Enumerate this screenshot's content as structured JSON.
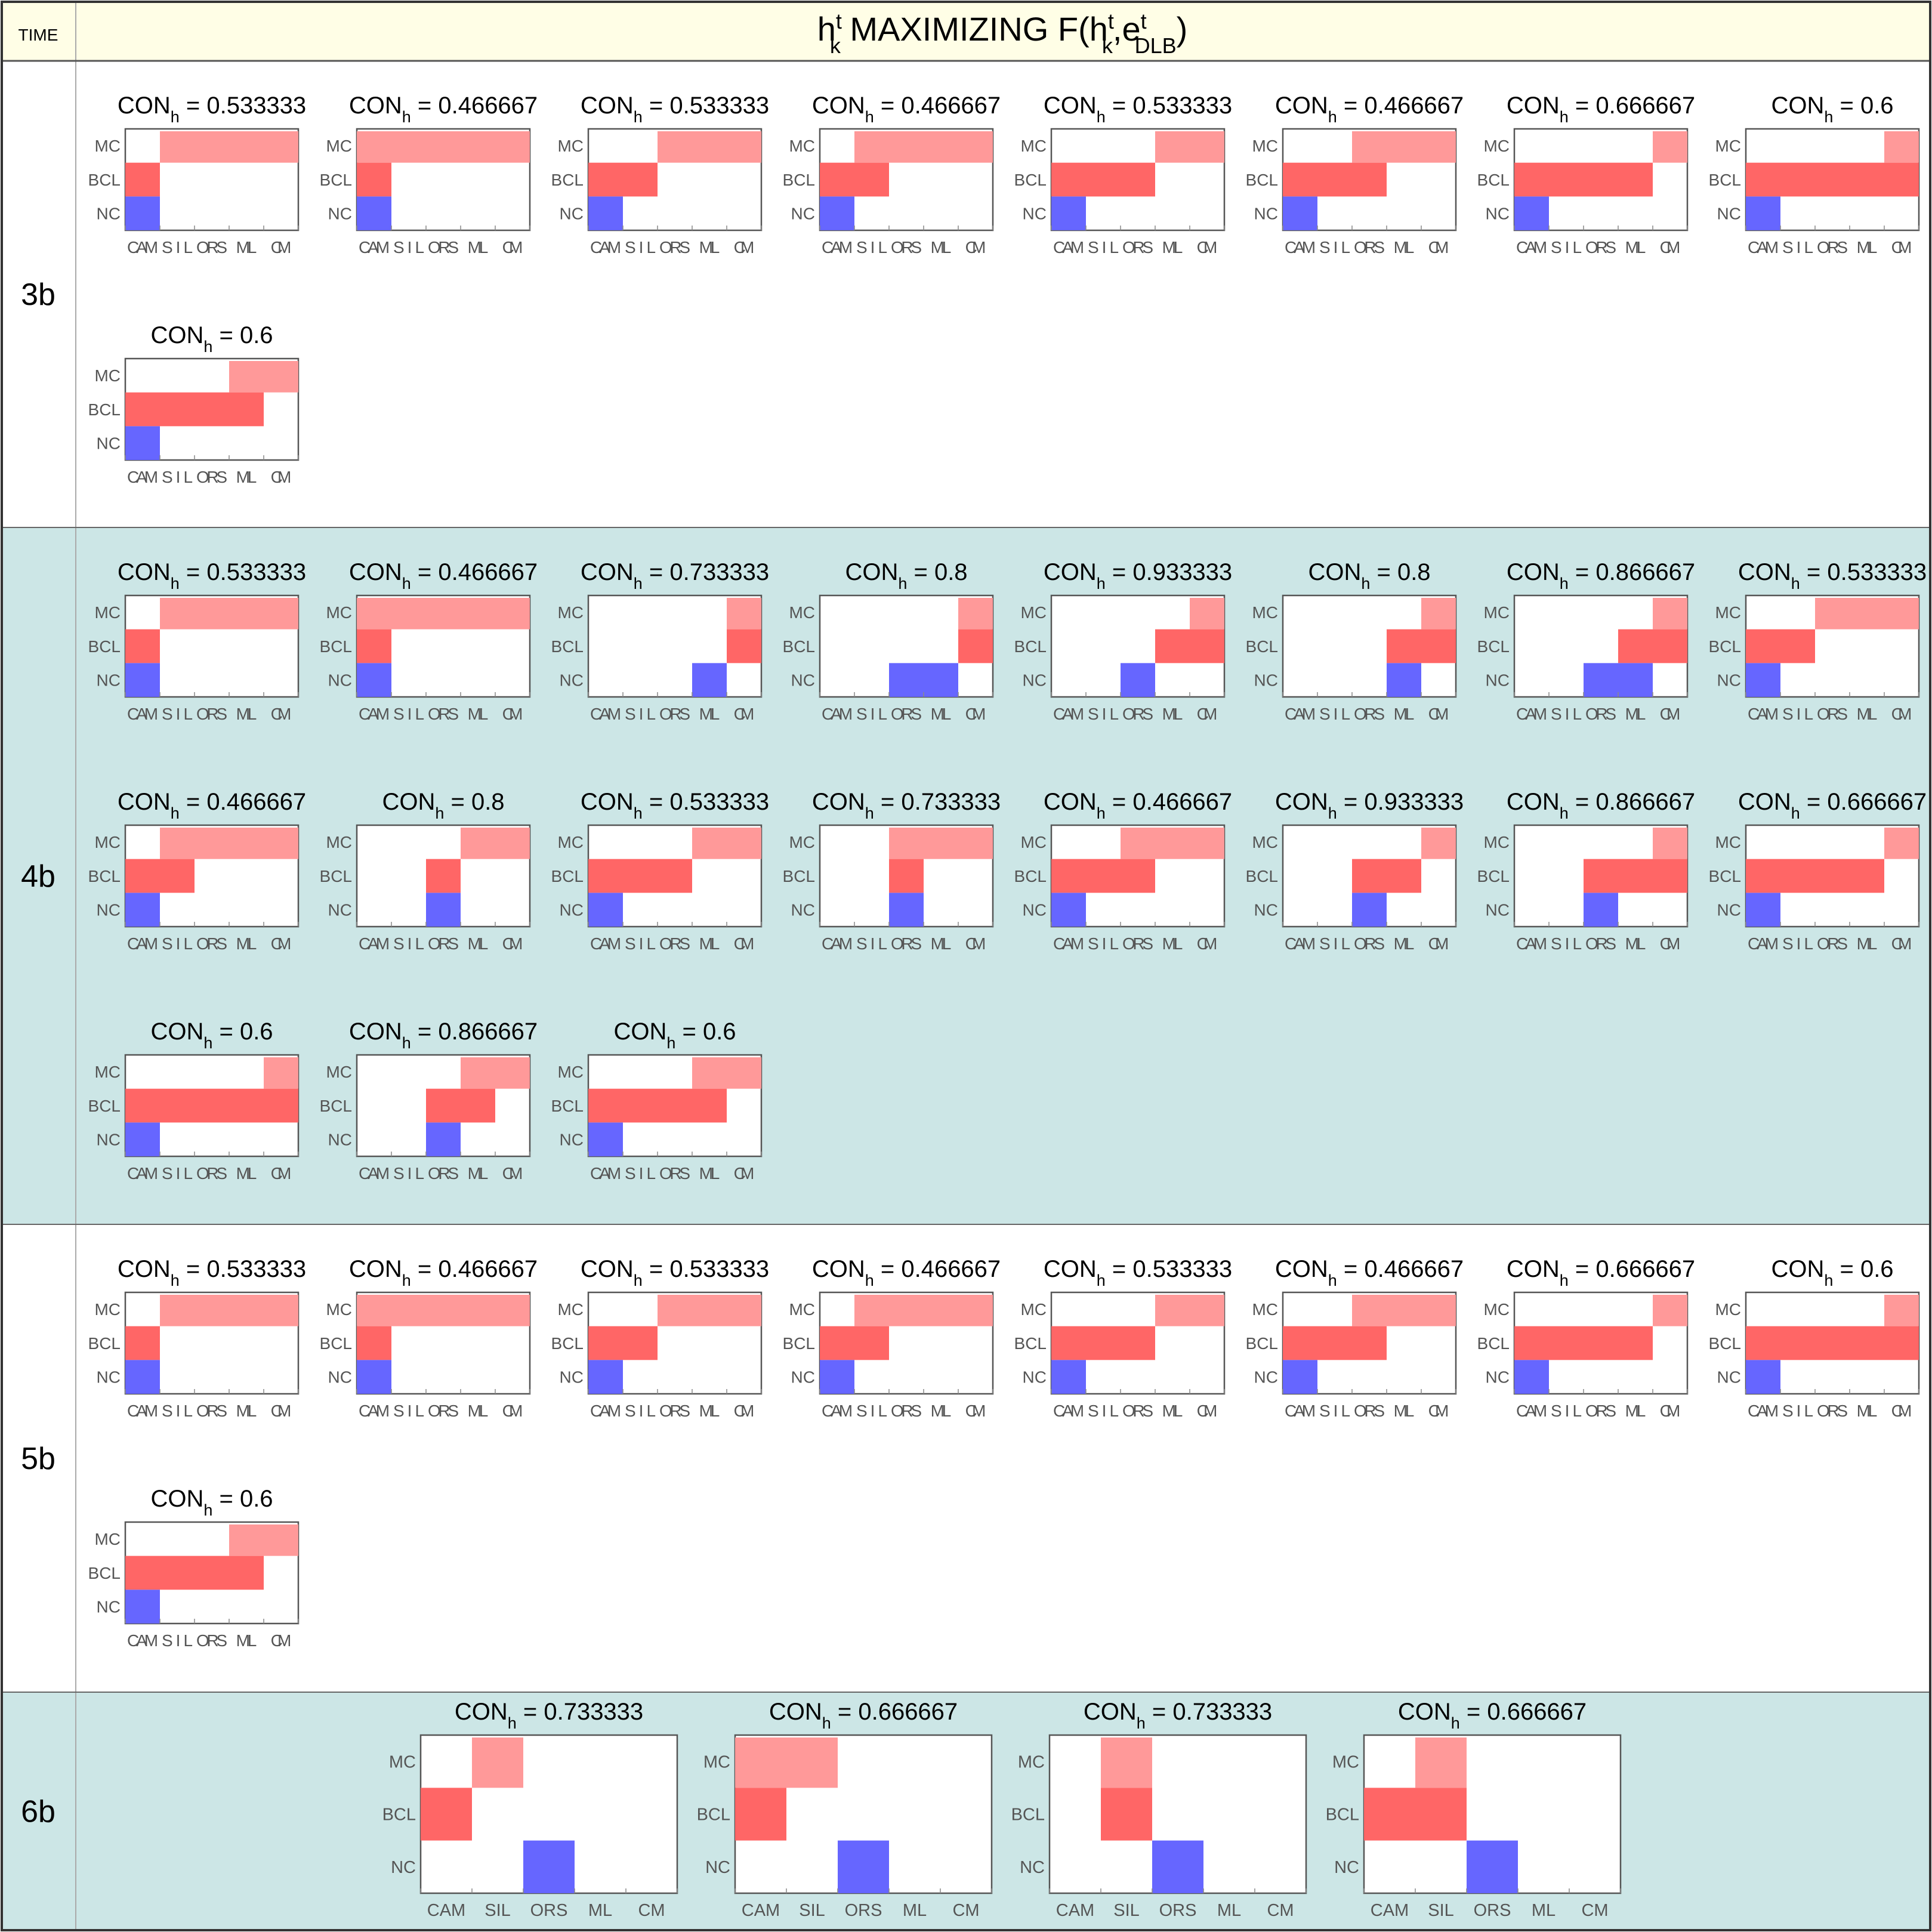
{
  "header": {
    "time_label": "TIME",
    "title_main": "h",
    "title_sup": "t",
    "title_sub": "k",
    "title_mid": " MAXIMIZING F(h",
    "title_sup2": "t",
    "title_sub2": "k",
    "title_mid2": ",e",
    "title_sup3": "t",
    "title_sub3": "DLB",
    "title_end": ")"
  },
  "colors": {
    "header_bg": "#fffee6",
    "band_bg": "#cce6e6",
    "mc": "#ff9999",
    "bcl": "#ff6666",
    "nc": "#6666ff",
    "frame": "#555555",
    "axis_text": "#555555"
  },
  "chart_data": {
    "type": "heatmap",
    "panel_label_prefix": "CON",
    "panel_label_sub": "h",
    "rows": [
      "MC",
      "BCL",
      "NC"
    ],
    "columns": [
      "CAM",
      "SIL",
      "ORS",
      "ML",
      "CM"
    ],
    "groups": [
      {
        "time": "3b",
        "panels": [
          {
            "con": "0.533333",
            "MC": [
              1,
              4
            ],
            "BCL": [
              0,
              0
            ],
            "NC": [
              0,
              0
            ]
          },
          {
            "con": "0.466667",
            "MC": [
              0,
              4
            ],
            "BCL": [
              0,
              0
            ],
            "NC": [
              0,
              0
            ]
          },
          {
            "con": "0.533333",
            "MC": [
              2,
              4
            ],
            "BCL": [
              0,
              1
            ],
            "NC": [
              0,
              0
            ]
          },
          {
            "con": "0.466667",
            "MC": [
              1,
              4
            ],
            "BCL": [
              0,
              1
            ],
            "NC": [
              0,
              0
            ]
          },
          {
            "con": "0.533333",
            "MC": [
              3,
              4
            ],
            "BCL": [
              0,
              2
            ],
            "NC": [
              0,
              0
            ]
          },
          {
            "con": "0.466667",
            "MC": [
              2,
              4
            ],
            "BCL": [
              0,
              2
            ],
            "NC": [
              0,
              0
            ]
          },
          {
            "con": "0.666667",
            "MC": [
              4,
              4
            ],
            "BCL": [
              0,
              3
            ],
            "NC": [
              0,
              0
            ]
          },
          {
            "con": "0.6",
            "MC": [
              4,
              4
            ],
            "BCL": [
              0,
              4
            ],
            "NC": [
              0,
              0
            ]
          },
          {
            "con": "0.6",
            "MC": [
              3,
              4
            ],
            "BCL": [
              0,
              3
            ],
            "NC": [
              0,
              0
            ]
          }
        ]
      },
      {
        "time": "4b",
        "panels": [
          {
            "con": "0.533333",
            "MC": [
              1,
              4
            ],
            "BCL": [
              0,
              0
            ],
            "NC": [
              0,
              0
            ]
          },
          {
            "con": "0.466667",
            "MC": [
              0,
              4
            ],
            "BCL": [
              0,
              0
            ],
            "NC": [
              0,
              0
            ]
          },
          {
            "con": "0.733333",
            "MC": [
              4,
              4
            ],
            "BCL": [
              4,
              4
            ],
            "NC": [
              3,
              3
            ]
          },
          {
            "con": "0.8",
            "MC": [
              4,
              4
            ],
            "BCL": [
              4,
              4
            ],
            "NC": [
              2,
              3
            ]
          },
          {
            "con": "0.933333",
            "MC": [
              4,
              4
            ],
            "BCL": [
              3,
              4
            ],
            "NC": [
              2,
              2
            ]
          },
          {
            "con": "0.8",
            "MC": [
              4,
              4
            ],
            "BCL": [
              3,
              4
            ],
            "NC": [
              3,
              3
            ]
          },
          {
            "con": "0.866667",
            "MC": [
              4,
              4
            ],
            "BCL": [
              3,
              4
            ],
            "NC": [
              2,
              3
            ]
          },
          {
            "con": "0.533333",
            "MC": [
              2,
              4
            ],
            "BCL": [
              0,
              1
            ],
            "NC": [
              0,
              0
            ]
          },
          {
            "con": "0.466667",
            "MC": [
              1,
              4
            ],
            "BCL": [
              0,
              1
            ],
            "NC": [
              0,
              0
            ]
          },
          {
            "con": "0.8",
            "MC": [
              3,
              4
            ],
            "BCL": [
              2,
              2
            ],
            "NC": [
              2,
              2
            ]
          },
          {
            "con": "0.533333",
            "MC": [
              3,
              4
            ],
            "BCL": [
              0,
              2
            ],
            "NC": [
              0,
              0
            ]
          },
          {
            "con": "0.733333",
            "MC": [
              2,
              4
            ],
            "BCL": [
              2,
              2
            ],
            "NC": [
              2,
              2
            ]
          },
          {
            "con": "0.466667",
            "MC": [
              2,
              4
            ],
            "BCL": [
              0,
              2
            ],
            "NC": [
              0,
              0
            ]
          },
          {
            "con": "0.933333",
            "MC": [
              4,
              4
            ],
            "BCL": [
              2,
              3
            ],
            "NC": [
              2,
              2
            ]
          },
          {
            "con": "0.866667",
            "MC": [
              4,
              4
            ],
            "BCL": [
              2,
              4
            ],
            "NC": [
              2,
              2
            ]
          },
          {
            "con": "0.666667",
            "MC": [
              4,
              4
            ],
            "BCL": [
              0,
              3
            ],
            "NC": [
              0,
              0
            ]
          },
          {
            "con": "0.6",
            "MC": [
              4,
              4
            ],
            "BCL": [
              0,
              4
            ],
            "NC": [
              0,
              0
            ]
          },
          {
            "con": "0.866667",
            "MC": [
              3,
              4
            ],
            "BCL": [
              2,
              3
            ],
            "NC": [
              2,
              2
            ]
          },
          {
            "con": "0.6",
            "MC": [
              3,
              4
            ],
            "BCL": [
              0,
              3
            ],
            "NC": [
              0,
              0
            ]
          }
        ]
      },
      {
        "time": "5b",
        "panels": [
          {
            "con": "0.533333",
            "MC": [
              1,
              4
            ],
            "BCL": [
              0,
              0
            ],
            "NC": [
              0,
              0
            ]
          },
          {
            "con": "0.466667",
            "MC": [
              0,
              4
            ],
            "BCL": [
              0,
              0
            ],
            "NC": [
              0,
              0
            ]
          },
          {
            "con": "0.533333",
            "MC": [
              2,
              4
            ],
            "BCL": [
              0,
              1
            ],
            "NC": [
              0,
              0
            ]
          },
          {
            "con": "0.466667",
            "MC": [
              1,
              4
            ],
            "BCL": [
              0,
              1
            ],
            "NC": [
              0,
              0
            ]
          },
          {
            "con": "0.533333",
            "MC": [
              3,
              4
            ],
            "BCL": [
              0,
              2
            ],
            "NC": [
              0,
              0
            ]
          },
          {
            "con": "0.466667",
            "MC": [
              2,
              4
            ],
            "BCL": [
              0,
              2
            ],
            "NC": [
              0,
              0
            ]
          },
          {
            "con": "0.666667",
            "MC": [
              4,
              4
            ],
            "BCL": [
              0,
              3
            ],
            "NC": [
              0,
              0
            ]
          },
          {
            "con": "0.6",
            "MC": [
              4,
              4
            ],
            "BCL": [
              0,
              4
            ],
            "NC": [
              0,
              0
            ]
          },
          {
            "con": "0.6",
            "MC": [
              3,
              4
            ],
            "BCL": [
              0,
              3
            ],
            "NC": [
              0,
              0
            ]
          }
        ]
      },
      {
        "time": "6b",
        "panels": [
          {
            "con": "0.733333",
            "MC": [
              1,
              1
            ],
            "BCL": [
              0,
              0
            ],
            "NC": [
              2,
              2
            ]
          },
          {
            "con": "0.666667",
            "MC": [
              0,
              1
            ],
            "BCL": [
              0,
              0
            ],
            "NC": [
              2,
              2
            ]
          },
          {
            "con": "0.733333",
            "MC": [
              1,
              1
            ],
            "BCL": [
              1,
              1
            ],
            "NC": [
              2,
              2
            ]
          },
          {
            "con": "0.666667",
            "MC": [
              1,
              1
            ],
            "BCL": [
              0,
              1
            ],
            "NC": [
              2,
              2
            ]
          }
        ]
      }
    ]
  }
}
